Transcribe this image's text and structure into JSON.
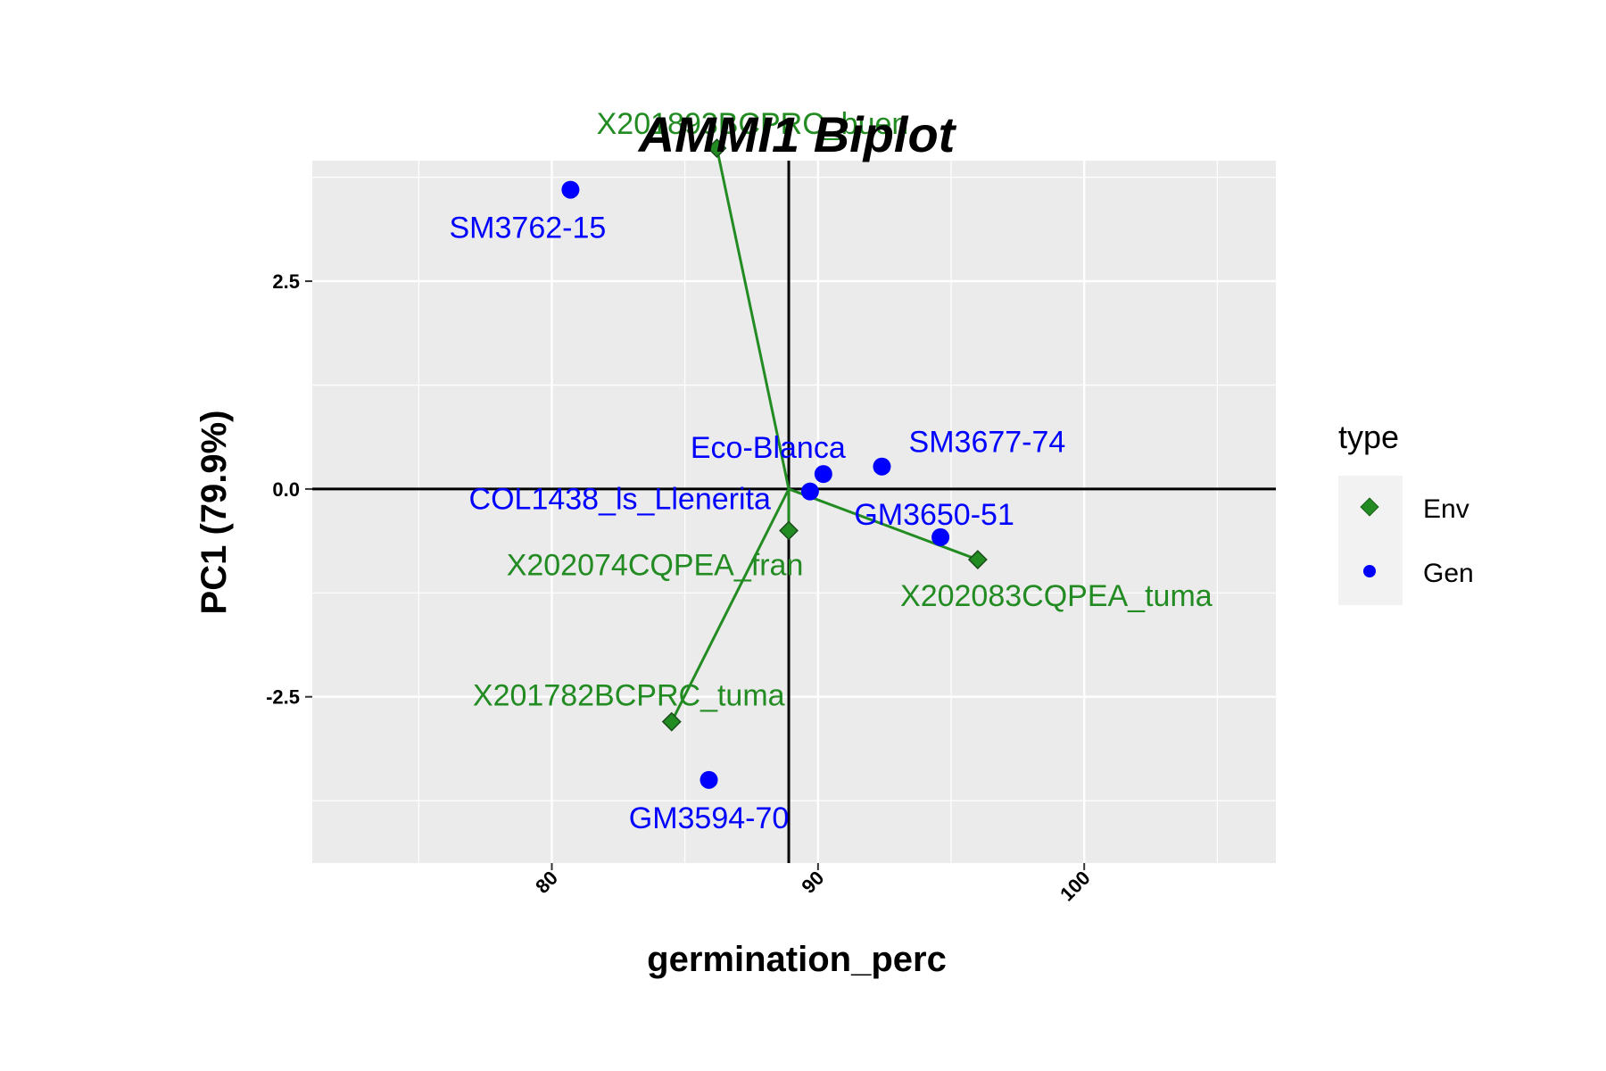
{
  "chart_data": {
    "type": "scatter",
    "title": "AMMI1 Biplot",
    "xlabel": "germination_perc",
    "ylabel": "PC1 (79.9%)",
    "xlim": [
      71,
      107.2
    ],
    "ylim": [
      -4.5,
      3.95
    ],
    "x_ticks": [
      80,
      90,
      100
    ],
    "y_ticks": [
      -2.5,
      0.0,
      2.5
    ],
    "x_tick_labels": [
      "80",
      "90",
      "100"
    ],
    "y_tick_labels": [
      "-2.5",
      "0.0",
      "2.5"
    ],
    "grid": true,
    "origin": {
      "x": 88.9,
      "y": 0.0
    },
    "legend": {
      "title": "type",
      "placement": "right",
      "entries": [
        {
          "label": "Env",
          "color": "#228B22",
          "shape": "diamond"
        },
        {
          "label": "Gen",
          "color": "#0000FF",
          "shape": "circle"
        }
      ]
    },
    "series": [
      {
        "name": "Env",
        "color": "#228B22",
        "points": [
          {
            "label": "X201893BCPRC_buen",
            "x": 86.2,
            "y": 4.1
          },
          {
            "label": "X202074CQPEA_fran",
            "x": 88.9,
            "y": -0.5
          },
          {
            "label": "X202083CQPEA_tuma",
            "x": 96.0,
            "y": -0.85
          },
          {
            "label": "X201782BCPRC_tuma",
            "x": 84.5,
            "y": -2.8
          }
        ]
      },
      {
        "name": "Gen",
        "color": "#0000FF",
        "points": [
          {
            "label": "SM3762-15",
            "x": 80.7,
            "y": 3.6
          },
          {
            "label": "Eco-Blanca",
            "x": 90.2,
            "y": 0.18
          },
          {
            "label": "SM3677-74",
            "x": 92.4,
            "y": 0.27
          },
          {
            "label": "COL1438_ls_Llenerita",
            "x": 89.7,
            "y": -0.03
          },
          {
            "label": "GM3650-51",
            "x": 94.6,
            "y": -0.58
          },
          {
            "label": "GM3594-70",
            "x": 85.9,
            "y": -3.5
          }
        ]
      }
    ]
  }
}
